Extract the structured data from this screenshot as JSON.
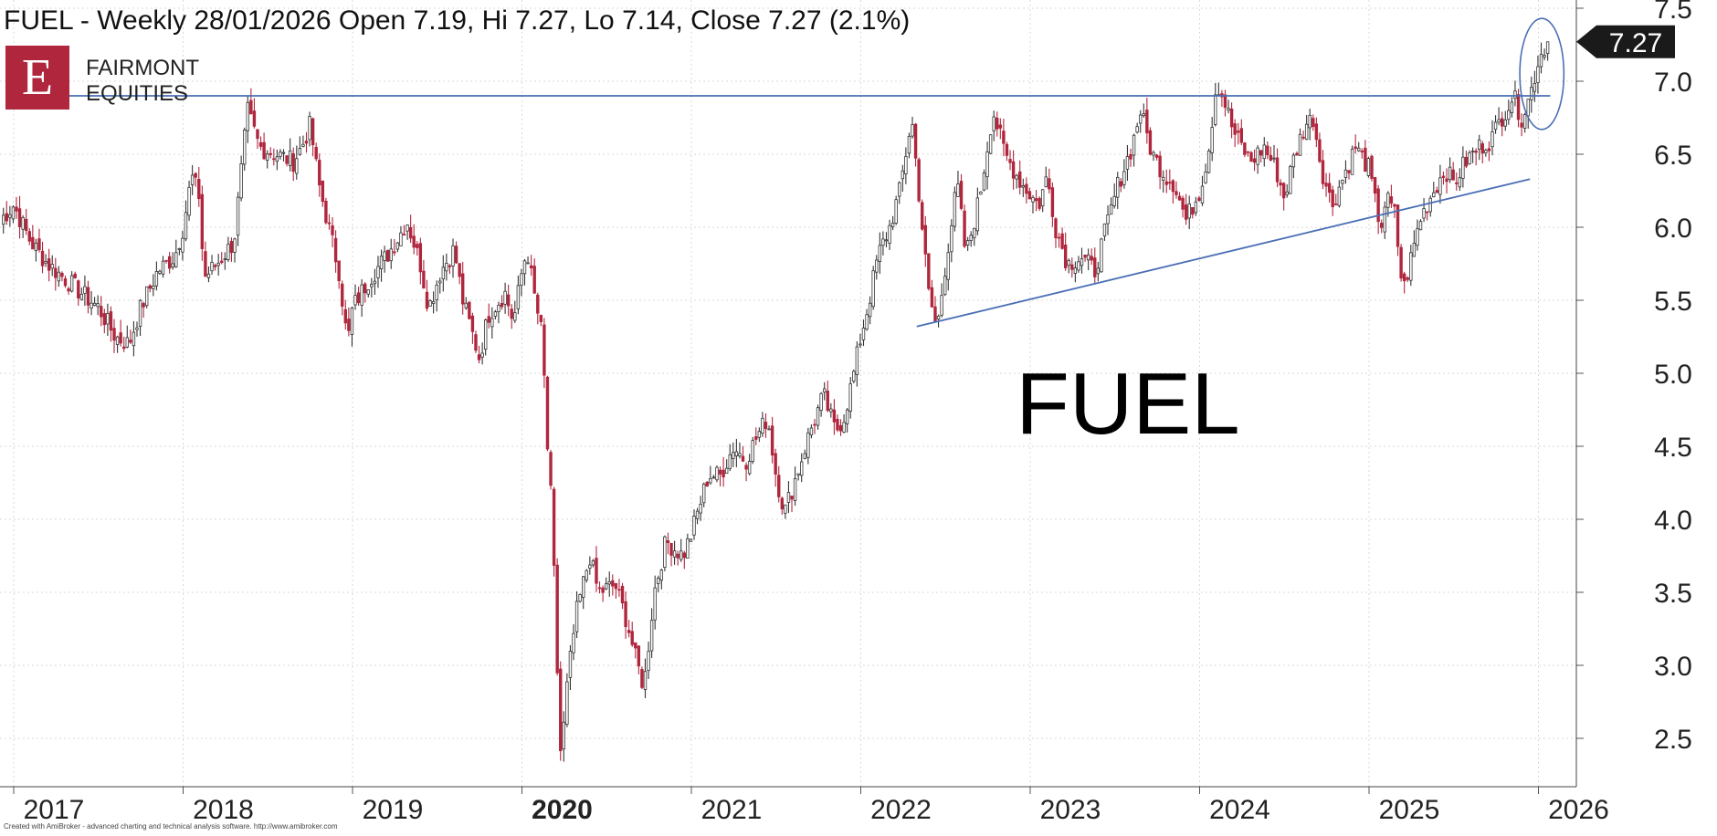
{
  "header": {
    "title": "FUEL - Weekly 28/01/2026 Open 7.19, Hi 7.27, Lo 7.14, Close 7.27 (2.1%)"
  },
  "logo": {
    "letter": "E",
    "line1": "FAIRMONT",
    "line2": "EQUITIES",
    "accent_color": "#b0263d"
  },
  "watermark": {
    "text": "FUEL"
  },
  "footer": {
    "credit": "Created with AmiBroker - advanced charting and technical analysis software. http://www.amibroker.com"
  },
  "price_badge": {
    "label": "7.27",
    "value": 7.27
  },
  "colors": {
    "up_candle": "#333333",
    "down_candle": "#b0263d",
    "trendline": "#4a6fb5",
    "grid": "#d9d9d9",
    "badge_bg": "#1a1a1a"
  },
  "chart_data": {
    "type": "candlestick",
    "interval": "weekly",
    "ylim": [
      2.2,
      7.5
    ],
    "yticks": [
      2.5,
      3.0,
      3.5,
      4.0,
      4.5,
      5.0,
      5.5,
      6.0,
      6.5,
      7.0,
      7.5
    ],
    "ytick_labels": [
      "2.5",
      "3.0",
      "3.5",
      "4.0",
      "4.5",
      "5.0",
      "5.5",
      "6.0",
      "6.5",
      "7.0",
      "7.5"
    ],
    "xlim": [
      2016.92,
      2026.07
    ],
    "xticks": [
      2017,
      2018,
      2019,
      2020,
      2021,
      2022,
      2023,
      2024,
      2025,
      2026
    ],
    "xtick_labels": [
      "2017",
      "2018",
      "2019",
      "2020",
      "2021",
      "2022",
      "2023",
      "2024",
      "2025",
      "2026"
    ],
    "highlight_xtick": "2020",
    "grid": true,
    "price_path": [
      [
        2016.92,
        6.05
      ],
      [
        2017.0,
        6.15
      ],
      [
        2017.1,
        5.9
      ],
      [
        2017.2,
        5.75
      ],
      [
        2017.35,
        5.6
      ],
      [
        2017.5,
        5.45
      ],
      [
        2017.6,
        5.25
      ],
      [
        2017.68,
        5.2
      ],
      [
        2017.75,
        5.45
      ],
      [
        2017.85,
        5.7
      ],
      [
        2017.95,
        5.8
      ],
      [
        2018.0,
        6.0
      ],
      [
        2018.05,
        6.35
      ],
      [
        2018.1,
        6.2
      ],
      [
        2018.12,
        5.65
      ],
      [
        2018.2,
        5.75
      ],
      [
        2018.3,
        5.9
      ],
      [
        2018.38,
        6.8
      ],
      [
        2018.45,
        6.55
      ],
      [
        2018.55,
        6.5
      ],
      [
        2018.65,
        6.45
      ],
      [
        2018.7,
        6.55
      ],
      [
        2018.75,
        6.7
      ],
      [
        2018.8,
        6.3
      ],
      [
        2018.85,
        6.05
      ],
      [
        2018.92,
        5.7
      ],
      [
        2018.97,
        5.2
      ],
      [
        2019.0,
        5.45
      ],
      [
        2019.1,
        5.65
      ],
      [
        2019.2,
        5.8
      ],
      [
        2019.28,
        5.95
      ],
      [
        2019.32,
        6.05
      ],
      [
        2019.4,
        5.75
      ],
      [
        2019.45,
        5.45
      ],
      [
        2019.52,
        5.7
      ],
      [
        2019.6,
        5.85
      ],
      [
        2019.65,
        5.5
      ],
      [
        2019.7,
        5.3
      ],
      [
        2019.75,
        5.1
      ],
      [
        2019.8,
        5.4
      ],
      [
        2019.9,
        5.55
      ],
      [
        2019.95,
        5.35
      ],
      [
        2020.0,
        5.7
      ],
      [
        2020.03,
        5.85
      ],
      [
        2020.07,
        5.55
      ],
      [
        2020.12,
        5.25
      ],
      [
        2020.15,
        4.5
      ],
      [
        2020.18,
        4.0
      ],
      [
        2020.2,
        3.2
      ],
      [
        2020.23,
        2.35
      ],
      [
        2020.27,
        2.9
      ],
      [
        2020.32,
        3.35
      ],
      [
        2020.4,
        3.75
      ],
      [
        2020.45,
        3.5
      ],
      [
        2020.55,
        3.55
      ],
      [
        2020.62,
        3.3
      ],
      [
        2020.67,
        3.05
      ],
      [
        2020.72,
        2.85
      ],
      [
        2020.78,
        3.5
      ],
      [
        2020.85,
        3.85
      ],
      [
        2020.95,
        3.75
      ],
      [
        2021.0,
        3.9
      ],
      [
        2021.05,
        4.1
      ],
      [
        2021.1,
        4.3
      ],
      [
        2021.17,
        4.3
      ],
      [
        2021.25,
        4.5
      ],
      [
        2021.32,
        4.4
      ],
      [
        2021.38,
        4.55
      ],
      [
        2021.45,
        4.7
      ],
      [
        2021.5,
        4.3
      ],
      [
        2021.55,
        4.05
      ],
      [
        2021.62,
        4.3
      ],
      [
        2021.7,
        4.6
      ],
      [
        2021.78,
        4.85
      ],
      [
        2021.85,
        4.6
      ],
      [
        2021.9,
        4.7
      ],
      [
        2021.95,
        4.95
      ],
      [
        2022.0,
        5.25
      ],
      [
        2022.05,
        5.5
      ],
      [
        2022.1,
        5.8
      ],
      [
        2022.17,
        6.0
      ],
      [
        2022.23,
        6.25
      ],
      [
        2022.3,
        6.75
      ],
      [
        2022.35,
        6.15
      ],
      [
        2022.4,
        5.55
      ],
      [
        2022.45,
        5.3
      ],
      [
        2022.5,
        5.75
      ],
      [
        2022.57,
        6.3
      ],
      [
        2022.62,
        5.8
      ],
      [
        2022.7,
        6.2
      ],
      [
        2022.78,
        6.8
      ],
      [
        2022.85,
        6.5
      ],
      [
        2022.95,
        6.3
      ],
      [
        2023.05,
        6.15
      ],
      [
        2023.1,
        6.35
      ],
      [
        2023.15,
        6.0
      ],
      [
        2023.22,
        5.75
      ],
      [
        2023.3,
        5.8
      ],
      [
        2023.38,
        5.7
      ],
      [
        2023.45,
        6.0
      ],
      [
        2023.52,
        6.3
      ],
      [
        2023.6,
        6.55
      ],
      [
        2023.65,
        6.8
      ],
      [
        2023.72,
        6.5
      ],
      [
        2023.8,
        6.35
      ],
      [
        2023.85,
        6.3
      ],
      [
        2023.92,
        6.05
      ],
      [
        2024.0,
        6.25
      ],
      [
        2024.05,
        6.5
      ],
      [
        2024.1,
        7.0
      ],
      [
        2024.15,
        6.85
      ],
      [
        2024.2,
        6.65
      ],
      [
        2024.3,
        6.45
      ],
      [
        2024.38,
        6.55
      ],
      [
        2024.45,
        6.4
      ],
      [
        2024.5,
        6.2
      ],
      [
        2024.55,
        6.45
      ],
      [
        2024.62,
        6.7
      ],
      [
        2024.67,
        6.75
      ],
      [
        2024.72,
        6.4
      ],
      [
        2024.78,
        6.15
      ],
      [
        2024.85,
        6.35
      ],
      [
        2024.92,
        6.55
      ],
      [
        2025.0,
        6.4
      ],
      [
        2025.03,
        6.2
      ],
      [
        2025.07,
        6.0
      ],
      [
        2025.1,
        6.2
      ],
      [
        2025.15,
        6.1
      ],
      [
        2025.2,
        5.55
      ],
      [
        2025.25,
        5.8
      ],
      [
        2025.3,
        6.05
      ],
      [
        2025.38,
        6.25
      ],
      [
        2025.45,
        6.4
      ],
      [
        2025.5,
        6.3
      ],
      [
        2025.57,
        6.45
      ],
      [
        2025.65,
        6.55
      ],
      [
        2025.72,
        6.6
      ],
      [
        2025.78,
        6.75
      ],
      [
        2025.85,
        6.9
      ],
      [
        2025.9,
        6.75
      ],
      [
        2025.95,
        6.9
      ],
      [
        2026.0,
        7.15
      ],
      [
        2026.05,
        7.27
      ]
    ],
    "last_candle": {
      "open": 7.19,
      "high": 7.27,
      "low": 7.14,
      "close": 7.27
    },
    "lines": [
      {
        "name": "resistance",
        "x": [
          2017.17,
          2026.07
        ],
        "y": [
          6.9,
          6.9
        ]
      },
      {
        "name": "support-trendline",
        "x": [
          2022.33,
          2025.95
        ],
        "y": [
          5.32,
          6.33
        ]
      }
    ],
    "ellipse": {
      "cx": 2026.02,
      "cy": 7.05,
      "rx_years": 0.13,
      "ry": 0.38
    }
  }
}
